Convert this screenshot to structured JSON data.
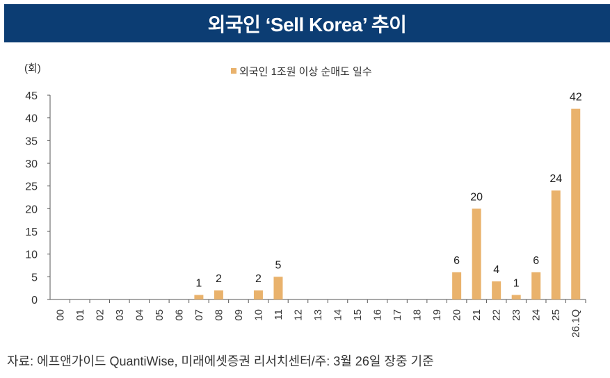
{
  "header": {
    "title": "외국인 ‘Sell Korea’ 추이"
  },
  "chart_data": {
    "type": "bar",
    "title": "",
    "ylabel": "(회)",
    "xlabel": "",
    "ylim": [
      0,
      45
    ],
    "yticks": [
      0,
      5,
      10,
      15,
      20,
      25,
      30,
      35,
      40,
      45
    ],
    "grid": false,
    "legend_position": "top-center",
    "categories": [
      "00",
      "01",
      "02",
      "03",
      "04",
      "05",
      "06",
      "07",
      "08",
      "09",
      "10",
      "11",
      "12",
      "13",
      "14",
      "15",
      "16",
      "17",
      "18",
      "19",
      "20",
      "21",
      "22",
      "23",
      "24",
      "25",
      "26.1Q"
    ],
    "series": [
      {
        "name": "외국인 1조원 이상 순매도 일수",
        "color": "#e9b26c",
        "values": [
          0,
          0,
          0,
          0,
          0,
          0,
          0,
          1,
          2,
          0,
          2,
          5,
          0,
          0,
          0,
          0,
          0,
          0,
          0,
          0,
          6,
          20,
          4,
          1,
          6,
          24,
          42
        ]
      }
    ]
  },
  "footer": {
    "source": "자료: 에프앤가이드 QuantiWise, 미래에셋증권 리서치센터/주: 3월 26일 장중 기준"
  }
}
